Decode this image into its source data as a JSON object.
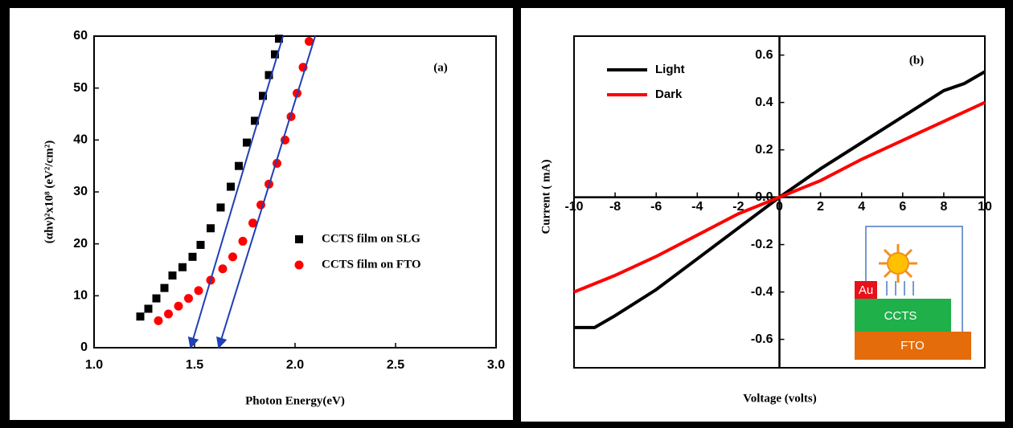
{
  "chart_data": [
    {
      "type": "scatter",
      "title": "(a)",
      "x_label": "Photon Energy(eV)",
      "y_label": "(αhν)²x10⁸ (eV²/cm²)",
      "xlim": [
        1,
        3
      ],
      "ylim": [
        0,
        60
      ],
      "xticks": [
        {
          "value": 1,
          "label": "1.0"
        },
        {
          "value": 1.5,
          "label": "1.5"
        },
        {
          "value": 2,
          "label": "2.0"
        },
        {
          "value": 2.5,
          "label": "2.5"
        },
        {
          "value": 3,
          "label": "3.0"
        }
      ],
      "yticks": [
        0,
        10,
        20,
        30,
        40,
        50,
        60
      ],
      "series": [
        {
          "name": "CCTS film on SLG",
          "color": "#000000",
          "marker": "square",
          "x": [
            1.23,
            1.27,
            1.31,
            1.35,
            1.39,
            1.44,
            1.49,
            1.53,
            1.58,
            1.63,
            1.68,
            1.72,
            1.76,
            1.8,
            1.84,
            1.87,
            1.9,
            1.92
          ],
          "y": [
            6,
            7.5,
            9.5,
            11.5,
            13.9,
            15.5,
            17.5,
            19.8,
            23,
            27,
            31,
            35,
            39.5,
            43.7,
            48.5,
            52.5,
            56.5,
            59.5
          ]
        },
        {
          "name": "CCTS film on FTO",
          "color": "#ff0000",
          "marker": "circle",
          "x": [
            1.32,
            1.37,
            1.42,
            1.47,
            1.52,
            1.58,
            1.64,
            1.69,
            1.74,
            1.79,
            1.83,
            1.87,
            1.91,
            1.95,
            1.98,
            2.01,
            2.04,
            2.07
          ],
          "y": [
            5.2,
            6.5,
            8,
            9.5,
            11,
            13,
            15.2,
            17.5,
            20.5,
            24,
            27.5,
            31.5,
            35.5,
            40,
            44.5,
            49,
            54,
            59
          ]
        }
      ],
      "tangent_lines": [
        {
          "color": "#1f3fb5",
          "x": [
            1.94,
            1.48
          ],
          "y": [
            60,
            0
          ]
        },
        {
          "color": "#1f3fb5",
          "x": [
            2.1,
            1.62
          ],
          "y": [
            60,
            0
          ]
        }
      ],
      "legend": "lower right"
    },
    {
      "type": "line",
      "title": "(b)",
      "x_label": "Voltage (volts)",
      "y_label": "Current ( mA)",
      "xlim": [
        -10,
        10
      ],
      "ylim": [
        -0.72,
        0.68
      ],
      "axes_at_origin": true,
      "xticks": [
        -10,
        -8,
        -6,
        -4,
        -2,
        0,
        2,
        4,
        6,
        8,
        10
      ],
      "yticks": [
        -0.6,
        -0.4,
        -0.2,
        {
          "value": 0,
          "label": "0.0"
        },
        0.2,
        0.4,
        0.6
      ],
      "series": [
        {
          "name": "Light",
          "color": "#000000",
          "x": [
            -10,
            -9,
            -8,
            -6,
            -4,
            -2,
            0,
            2,
            4,
            6,
            8,
            9,
            10
          ],
          "y": [
            -0.55,
            -0.55,
            -0.5,
            -0.39,
            -0.26,
            -0.13,
            0,
            0.12,
            0.23,
            0.34,
            0.45,
            0.48,
            0.53
          ]
        },
        {
          "name": "Dark",
          "color": "#ff0000",
          "x": [
            -10,
            -8,
            -6,
            -4,
            -2,
            0,
            2,
            4,
            6,
            8,
            10
          ],
          "y": [
            -0.4,
            -0.33,
            -0.25,
            -0.16,
            -0.07,
            0,
            0.07,
            0.16,
            0.24,
            0.32,
            0.4
          ]
        }
      ],
      "legend": "upper left",
      "inset_labels": [
        "Au",
        "CCTS",
        "FTO"
      ]
    }
  ]
}
